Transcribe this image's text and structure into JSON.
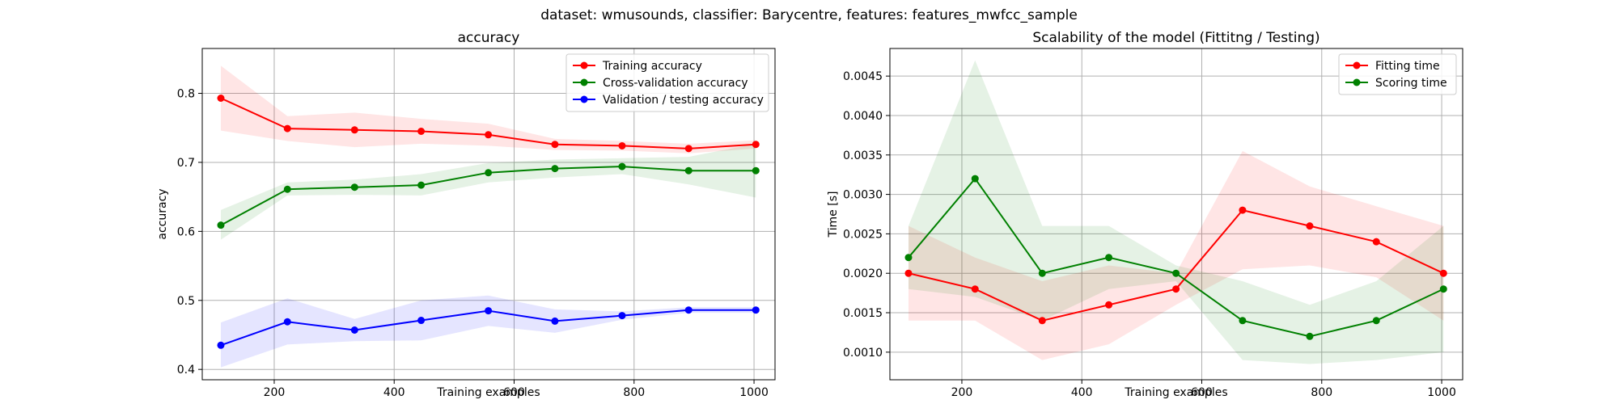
{
  "suptitle": "dataset: wmusounds, classifier: Barycentre, features: features_mwfcc_sample",
  "chart_data": [
    {
      "type": "line",
      "title": "accuracy",
      "xlabel": "Training examples",
      "ylabel": "accuracy",
      "xlim": [
        80,
        1035
      ],
      "ylim": [
        0.385,
        0.865
      ],
      "xticks": [
        200,
        400,
        600,
        800,
        1000
      ],
      "yticks": [
        0.4,
        0.5,
        0.6,
        0.7,
        0.8
      ],
      "ytick_labels": [
        "0.4",
        "0.5",
        "0.6",
        "0.7",
        "0.8"
      ],
      "grid": true,
      "legend_position": "top-right",
      "x": [
        111,
        222,
        334,
        445,
        557,
        668,
        780,
        891,
        1003
      ],
      "series": [
        {
          "name": "Training accuracy",
          "color": "#ff0000",
          "band_color": "#ff0000",
          "values": [
            0.793,
            0.749,
            0.747,
            0.745,
            0.74,
            0.726,
            0.724,
            0.72,
            0.726
          ],
          "lower": [
            0.746,
            0.731,
            0.722,
            0.727,
            0.724,
            0.718,
            0.717,
            0.713,
            0.72
          ],
          "upper": [
            0.84,
            0.767,
            0.772,
            0.763,
            0.756,
            0.734,
            0.731,
            0.727,
            0.732
          ]
        },
        {
          "name": "Cross-validation accuracy",
          "color": "#008000",
          "band_color": "#008000",
          "values": [
            0.609,
            0.661,
            0.664,
            0.667,
            0.685,
            0.691,
            0.694,
            0.688,
            0.688
          ],
          "lower": [
            0.588,
            0.652,
            0.653,
            0.652,
            0.671,
            0.678,
            0.683,
            0.668,
            0.649
          ],
          "upper": [
            0.631,
            0.671,
            0.675,
            0.683,
            0.699,
            0.704,
            0.706,
            0.708,
            0.727
          ]
        },
        {
          "name": "Validation / testing accuracy",
          "color": "#0000ff",
          "band_color": "#0000ff",
          "values": [
            0.435,
            0.469,
            0.457,
            0.471,
            0.485,
            0.47,
            0.478,
            0.486,
            0.486
          ],
          "lower": [
            0.403,
            0.436,
            0.441,
            0.442,
            0.463,
            0.453,
            0.472,
            0.482,
            0.482
          ],
          "upper": [
            0.468,
            0.503,
            0.473,
            0.5,
            0.507,
            0.487,
            0.484,
            0.49,
            0.49
          ]
        }
      ]
    },
    {
      "type": "line",
      "title": "Scalability of the model (Fittitng / Testing)",
      "xlabel": "Training examples",
      "ylabel": "Time [s]",
      "xlim": [
        80,
        1035
      ],
      "ylim": [
        0.00065,
        0.00485
      ],
      "xticks": [
        200,
        400,
        600,
        800,
        1000
      ],
      "yticks": [
        0.001,
        0.0015,
        0.002,
        0.0025,
        0.003,
        0.0035,
        0.004,
        0.0045
      ],
      "ytick_labels": [
        "0.0010",
        "0.0015",
        "0.0020",
        "0.0025",
        "0.0030",
        "0.0035",
        "0.0040",
        "0.0045"
      ],
      "grid": true,
      "legend_position": "top-right",
      "x": [
        111,
        222,
        334,
        445,
        557,
        668,
        780,
        891,
        1003
      ],
      "series": [
        {
          "name": "Fitting time",
          "color": "#ff0000",
          "band_color": "#ff0000",
          "values": [
            0.002,
            0.0018,
            0.0014,
            0.0016,
            0.0018,
            0.0028,
            0.0026,
            0.0024,
            0.002
          ],
          "lower": [
            0.0014,
            0.0014,
            0.0009,
            0.0011,
            0.0016,
            0.00205,
            0.0021,
            0.00195,
            0.0014
          ],
          "upper": [
            0.0026,
            0.0022,
            0.0019,
            0.0021,
            0.002,
            0.00355,
            0.0031,
            0.00285,
            0.0026
          ]
        },
        {
          "name": "Scoring time",
          "color": "#008000",
          "band_color": "#008000",
          "values": [
            0.0022,
            0.0032,
            0.002,
            0.0022,
            0.002,
            0.0014,
            0.0012,
            0.0014,
            0.0018
          ],
          "lower": [
            0.0018,
            0.0017,
            0.0014,
            0.0018,
            0.0019,
            0.0009,
            0.00085,
            0.0009,
            0.001
          ],
          "upper": [
            0.0026,
            0.0047,
            0.0026,
            0.0026,
            0.0021,
            0.0019,
            0.0016,
            0.0019,
            0.0026
          ]
        }
      ]
    }
  ]
}
